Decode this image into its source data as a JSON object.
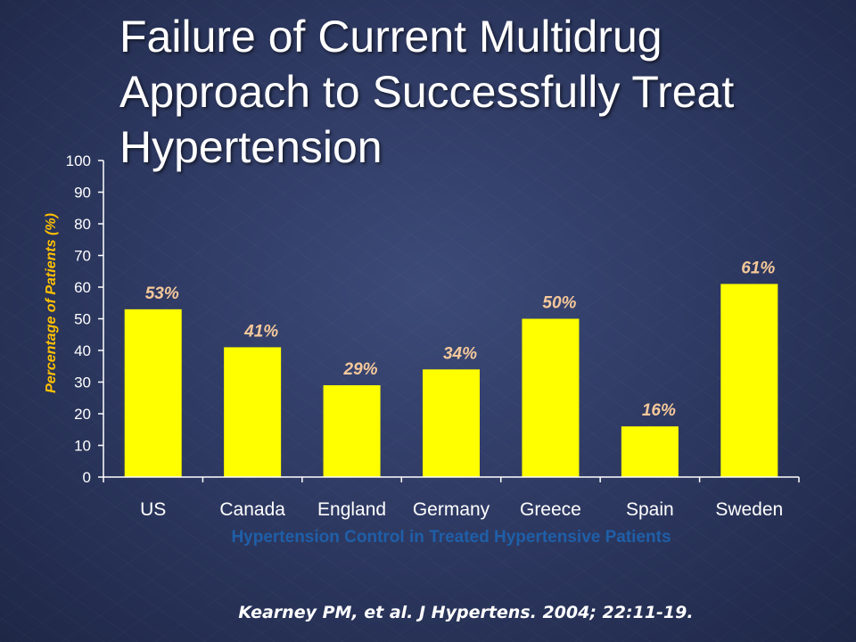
{
  "slide": {
    "title": "Failure of Current Multidrug Approach to Successfully Treat Hypertension",
    "citation": "Kearney PM, et al. J Hypertens. 2004; 22:11-19."
  },
  "chart_data": {
    "type": "bar",
    "title": "",
    "categories": [
      "US",
      "Canada",
      "England",
      "Germany",
      "Greece",
      "Spain",
      "Sweden"
    ],
    "values": [
      53,
      41,
      29,
      34,
      50,
      16,
      61
    ],
    "data_labels": [
      "53%",
      "41%",
      "29%",
      "34%",
      "50%",
      "16%",
      "61%"
    ],
    "xlabel": "Hypertension Control in Treated Hypertensive Patients",
    "ylabel": "Percentage of Patients (%)",
    "ylim": [
      0,
      100
    ],
    "yticks": [
      0,
      10,
      20,
      30,
      40,
      50,
      60,
      70,
      80,
      90,
      100
    ],
    "grid": false,
    "colors": {
      "bar": "#ffff00",
      "data_label": "#f5c89a",
      "ylabel": "#ffc000",
      "xlabel": "#1f5fa8",
      "axis": "#ffffff",
      "tick_text": "#ffffff"
    }
  }
}
